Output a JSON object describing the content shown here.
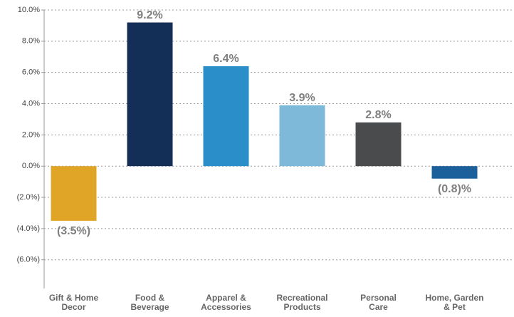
{
  "chart_data": {
    "type": "bar",
    "categories": [
      "Gift & Home\nDecor",
      "Food &\nBeverage",
      "Apparel &\nAccessories",
      "Recreational\nProducts",
      "Personal\nCare",
      "Home, Garden\n& Pet"
    ],
    "values": [
      -3.5,
      9.2,
      6.4,
      3.9,
      2.8,
      -0.8
    ],
    "value_labels": [
      "(3.5%)",
      "9.2%",
      "6.4%",
      "3.9%",
      "2.8%",
      "(0.8)%"
    ],
    "colors": [
      "#e0a526",
      "#132f57",
      "#2a8fc9",
      "#7fb9da",
      "#4a4b4d",
      "#1b5f9b"
    ],
    "ylim": [
      -7.7,
      10
    ],
    "yticks": [
      {
        "value": 10,
        "label": "10.0%"
      },
      {
        "value": 8,
        "label": "8.0%"
      },
      {
        "value": 6,
        "label": "6.0%"
      },
      {
        "value": 4,
        "label": "4.0%"
      },
      {
        "value": 2,
        "label": "2.0%"
      },
      {
        "value": 0,
        "label": "0.0%"
      },
      {
        "value": -2,
        "label": "(2.0%)"
      },
      {
        "value": -4,
        "label": "(4.0%)"
      },
      {
        "value": -6,
        "label": "(6.0%)"
      }
    ],
    "grid": true
  }
}
